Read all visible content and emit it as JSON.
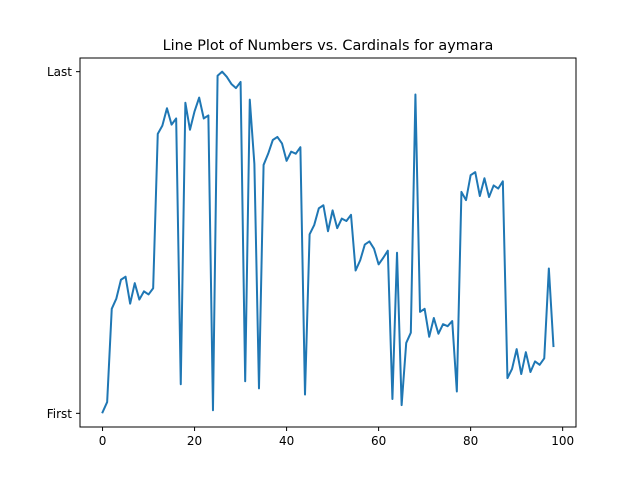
{
  "chart_data": {
    "type": "line",
    "title": "Line Plot of Numbers vs. Cardinals for aymara",
    "xlabel": "",
    "ylabel": "",
    "xlim": [
      -4.9,
      102.9
    ],
    "ylim": [
      -0.04,
      1.04
    ],
    "x_ticks": [
      0,
      20,
      40,
      60,
      80,
      100
    ],
    "y_ticks": [
      {
        "value": 0,
        "label": "First"
      },
      {
        "value": 1,
        "label": "Last"
      }
    ],
    "grid": false,
    "legend": "none",
    "line_color": "#1f77b4",
    "x": [
      0,
      1,
      2,
      3,
      4,
      5,
      6,
      7,
      8,
      9,
      10,
      11,
      12,
      13,
      14,
      15,
      16,
      17,
      18,
      19,
      20,
      21,
      22,
      23,
      24,
      25,
      26,
      27,
      28,
      29,
      30,
      31,
      32,
      33,
      34,
      35,
      36,
      37,
      38,
      39,
      40,
      41,
      42,
      43,
      44,
      45,
      46,
      47,
      48,
      49,
      50,
      51,
      52,
      53,
      54,
      55,
      56,
      57,
      58,
      59,
      60,
      61,
      62,
      63,
      64,
      65,
      66,
      67,
      68,
      69,
      70,
      71,
      72,
      73,
      74,
      75,
      76,
      77,
      78,
      79,
      80,
      81,
      82,
      83,
      84,
      85,
      86,
      87,
      88,
      89,
      90,
      91,
      92,
      93,
      94,
      95,
      96,
      97,
      98
    ],
    "y": [
      0.003,
      0.033,
      0.306,
      0.336,
      0.391,
      0.4,
      0.321,
      0.381,
      0.333,
      0.357,
      0.348,
      0.366,
      0.818,
      0.842,
      0.893,
      0.845,
      0.863,
      0.085,
      0.909,
      0.83,
      0.884,
      0.924,
      0.863,
      0.872,
      0.009,
      0.988,
      1.0,
      0.985,
      0.964,
      0.952,
      0.97,
      0.094,
      0.918,
      0.73,
      0.073,
      0.727,
      0.76,
      0.8,
      0.809,
      0.79,
      0.739,
      0.766,
      0.76,
      0.779,
      0.055,
      0.524,
      0.551,
      0.6,
      0.609,
      0.533,
      0.594,
      0.542,
      0.57,
      0.563,
      0.581,
      0.418,
      0.448,
      0.494,
      0.503,
      0.482,
      0.436,
      0.455,
      0.476,
      0.042,
      0.47,
      0.024,
      0.206,
      0.236,
      0.933,
      0.297,
      0.306,
      0.224,
      0.279,
      0.233,
      0.261,
      0.255,
      0.27,
      0.064,
      0.648,
      0.624,
      0.697,
      0.706,
      0.636,
      0.688,
      0.633,
      0.667,
      0.658,
      0.679,
      0.103,
      0.13,
      0.188,
      0.115,
      0.179,
      0.121,
      0.152,
      0.142,
      0.161,
      0.424,
      0.197
    ]
  }
}
